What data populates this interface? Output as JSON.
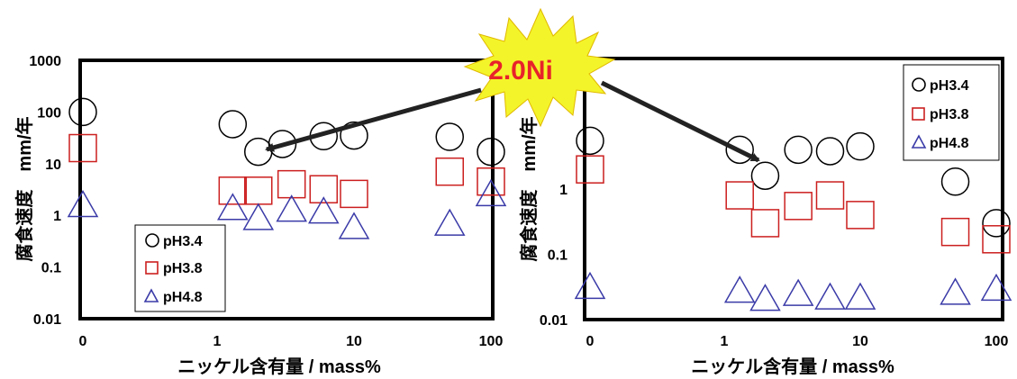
{
  "callout": {
    "text": "2.0Ni",
    "text_color": "#e8222a",
    "burst_color": "#f4f42a"
  },
  "colors": {
    "pH3.4": "#000000",
    "pH3.8": "#cc1f1f",
    "pH4.8": "#3a3aa8"
  },
  "chart_data": [
    {
      "type": "scatter",
      "ylabel": "腐食速度　mm/年",
      "xlabel": "ニッケル含有量 / mass%",
      "x_ticks": [
        "0",
        "1",
        "10",
        "100"
      ],
      "y_ticks": [
        "1000",
        "100",
        "10",
        "1",
        "0.1",
        "0.01"
      ],
      "y_scale": "log",
      "x_scale": "log",
      "ylim": [
        0.01,
        1000
      ],
      "grid": false,
      "legend_position": "bottom-left",
      "series": [
        {
          "name": "pH3.4",
          "marker": "circle",
          "points": [
            [
              0,
              100
            ],
            [
              1.3,
              58
            ],
            [
              2,
              17
            ],
            [
              3,
              24
            ],
            [
              6,
              34
            ],
            [
              10,
              35
            ],
            [
              50,
              33
            ],
            [
              100,
              17
            ]
          ]
        },
        {
          "name": "pH3.8",
          "marker": "square",
          "points": [
            [
              0,
              20
            ],
            [
              1.3,
              3
            ],
            [
              2,
              3
            ],
            [
              3.5,
              4
            ],
            [
              6,
              3.2
            ],
            [
              10,
              2.6
            ],
            [
              50,
              7
            ],
            [
              100,
              4.5
            ]
          ]
        },
        {
          "name": "pH4.8",
          "marker": "triangle",
          "points": [
            [
              0,
              1.6
            ],
            [
              1.3,
              1.4
            ],
            [
              2,
              0.9
            ],
            [
              3.5,
              1.3
            ],
            [
              6,
              1.2
            ],
            [
              10,
              0.6
            ],
            [
              50,
              0.7
            ],
            [
              100,
              2.6
            ]
          ]
        }
      ]
    },
    {
      "type": "scatter",
      "ylabel": "腐食速度　mm/年",
      "xlabel": "ニッケル含有量 / mass%",
      "x_ticks": [
        "0",
        "1",
        "10",
        "100"
      ],
      "y_ticks": [
        "1",
        "0.1",
        "0.01"
      ],
      "y_scale": "log",
      "x_scale": "log",
      "ylim": [
        0.01,
        100
      ],
      "grid": false,
      "legend_position": "top-right",
      "series": [
        {
          "name": "pH3.4",
          "marker": "circle",
          "points": [
            [
              0,
              5.5
            ],
            [
              1.3,
              4
            ],
            [
              2,
              1.6
            ],
            [
              3.5,
              4
            ],
            [
              6,
              3.8
            ],
            [
              10,
              4.5
            ],
            [
              50,
              1.3
            ],
            [
              100,
              0.3
            ]
          ]
        },
        {
          "name": "pH3.8",
          "marker": "square",
          "points": [
            [
              0,
              2
            ],
            [
              1.3,
              0.8
            ],
            [
              2,
              0.3
            ],
            [
              3.5,
              0.55
            ],
            [
              6,
              0.8
            ],
            [
              10,
              0.4
            ],
            [
              50,
              0.22
            ],
            [
              100,
              0.17
            ]
          ]
        },
        {
          "name": "pH4.8",
          "marker": "triangle",
          "points": [
            [
              0,
              0.032
            ],
            [
              1.3,
              0.028
            ],
            [
              2,
              0.021
            ],
            [
              3.5,
              0.025
            ],
            [
              6,
              0.022
            ],
            [
              10,
              0.022
            ],
            [
              50,
              0.026
            ],
            [
              100,
              0.03
            ]
          ]
        }
      ]
    }
  ]
}
